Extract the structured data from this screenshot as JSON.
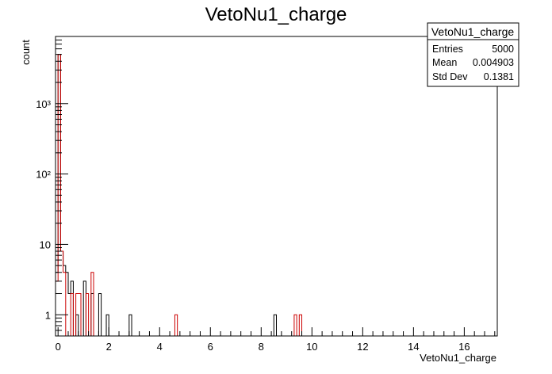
{
  "chart_data": {
    "type": "histogram",
    "title": "VetoNu1_charge",
    "xlabel": "VetoNu1_charge",
    "ylabel": "count",
    "xlim": [
      -0.1,
      17.3
    ],
    "ylim": [
      0.5,
      9000
    ],
    "y_scale": "log",
    "grid": false,
    "legend": "stats box top-right",
    "x_ticks": [
      0,
      2,
      4,
      6,
      8,
      10,
      12,
      14,
      16
    ],
    "y_ticks": [
      {
        "value": 1,
        "label": "1"
      },
      {
        "value": 10,
        "label": "10"
      },
      {
        "value": 100,
        "label": "10²"
      },
      {
        "value": 1000,
        "label": "10³"
      }
    ],
    "bin_width": 0.1,
    "series": [
      {
        "color": "#000000",
        "bins": [
          {
            "x": -0.1,
            "y": 4
          },
          {
            "x": 0.0,
            "y": 5000
          },
          {
            "x": 0.1,
            "y": 8
          },
          {
            "x": 0.2,
            "y": 5
          },
          {
            "x": 0.3,
            "y": 4
          },
          {
            "x": 0.4,
            "y": 2
          },
          {
            "x": 0.5,
            "y": 3
          },
          {
            "x": 0.7,
            "y": 1
          },
          {
            "x": 1.0,
            "y": 3
          },
          {
            "x": 1.3,
            "y": 2
          },
          {
            "x": 1.6,
            "y": 2
          },
          {
            "x": 1.9,
            "y": 1
          },
          {
            "x": 2.8,
            "y": 1
          },
          {
            "x": 8.5,
            "y": 1
          }
        ]
      },
      {
        "color": "#cc0000",
        "bins": [
          {
            "x": -0.1,
            "y": 3
          },
          {
            "x": 0.0,
            "y": 5000
          },
          {
            "x": 0.1,
            "y": 8
          },
          {
            "x": 0.2,
            "y": 4
          },
          {
            "x": 0.5,
            "y": 2
          },
          {
            "x": 0.7,
            "y": 2
          },
          {
            "x": 0.8,
            "y": 2
          },
          {
            "x": 1.1,
            "y": 2
          },
          {
            "x": 1.3,
            "y": 4
          },
          {
            "x": 4.6,
            "y": 1
          },
          {
            "x": 9.3,
            "y": 1
          },
          {
            "x": 9.5,
            "y": 1
          }
        ]
      }
    ],
    "stats": {
      "title": "VetoNu1_charge",
      "rows": [
        {
          "label": "Entries",
          "value": "5000"
        },
        {
          "label": "Mean",
          "value": "0.004903"
        },
        {
          "label": "Std Dev",
          "value": "0.1381"
        }
      ]
    }
  }
}
